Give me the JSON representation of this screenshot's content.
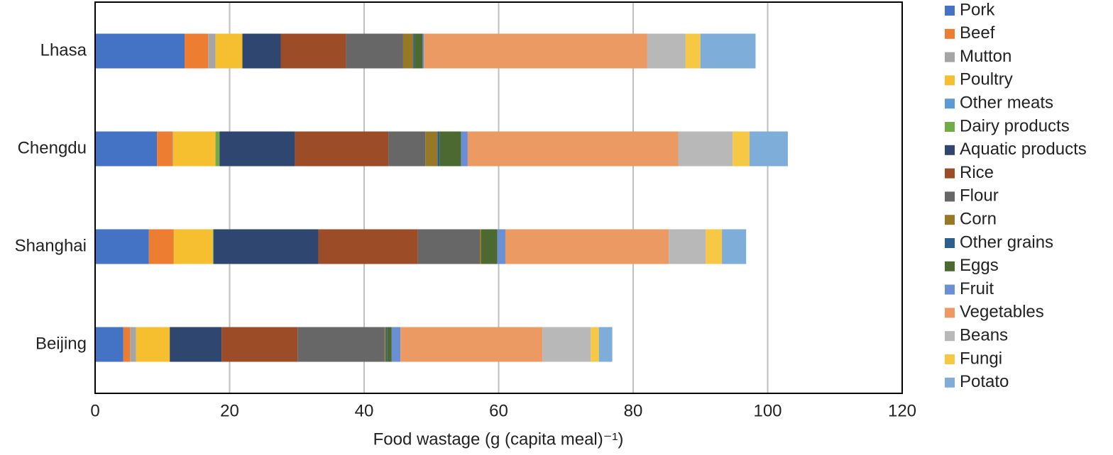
{
  "chart_data": {
    "type": "stacked-barh",
    "x_label": "Food wastage (g (capita meal)⁻¹)",
    "categories": [
      "Lhasa",
      "Chengdu",
      "Shanghai",
      "Beijing"
    ],
    "xlim": [
      0,
      120
    ],
    "xticks": [
      0,
      20,
      40,
      60,
      80,
      100,
      120
    ],
    "grid": true,
    "legend": "right",
    "series": [
      {
        "name": "Pork",
        "color": "#4472c4",
        "values": [
          13.3,
          9.2,
          8.0,
          4.2
        ]
      },
      {
        "name": "Beef",
        "color": "#ed7d31",
        "values": [
          3.5,
          2.3,
          3.7,
          1.0
        ]
      },
      {
        "name": "Mutton",
        "color": "#a5a5a5",
        "values": [
          1.1,
          0.1,
          0,
          0.9
        ]
      },
      {
        "name": "Poultry",
        "color": "#f5bf2f",
        "values": [
          4.0,
          6.3,
          5.8,
          5.0
        ]
      },
      {
        "name": "Other meats",
        "color": "#5b9bd5",
        "values": [
          0,
          0,
          0,
          0
        ]
      },
      {
        "name": "Dairy products",
        "color": "#70ad47",
        "values": [
          0,
          0.6,
          0.1,
          0
        ]
      },
      {
        "name": "Aquatic products",
        "color": "#2e4670",
        "values": [
          5.7,
          11.2,
          15.6,
          7.7
        ]
      },
      {
        "name": "Rice",
        "color": "#9c4c26",
        "values": [
          9.7,
          13.9,
          14.8,
          11.3
        ]
      },
      {
        "name": "Flour",
        "color": "#676767",
        "values": [
          8.5,
          5.5,
          9.2,
          12.9
        ]
      },
      {
        "name": "Corn",
        "color": "#977826",
        "values": [
          1.5,
          1.8,
          0.2,
          0.2
        ]
      },
      {
        "name": "Other grains",
        "color": "#2a5f8e",
        "values": [
          0.2,
          0.3,
          0,
          0.2
        ]
      },
      {
        "name": "Eggs",
        "color": "#4c6932",
        "values": [
          1.2,
          3.2,
          2.4,
          0.7
        ]
      },
      {
        "name": "Fruit",
        "color": "#6a8fd2",
        "values": [
          0.2,
          1.0,
          1.2,
          1.3
        ]
      },
      {
        "name": "Vegetables",
        "color": "#ea9a62",
        "values": [
          33.2,
          31.3,
          24.3,
          21.1
        ]
      },
      {
        "name": "Beans",
        "color": "#b8b8b8",
        "values": [
          5.7,
          8.1,
          5.5,
          7.2
        ]
      },
      {
        "name": "Fungi",
        "color": "#f7c843",
        "values": [
          2.2,
          2.5,
          2.4,
          1.2
        ]
      },
      {
        "name": "Potato",
        "color": "#7eadd9",
        "values": [
          8.2,
          5.7,
          3.6,
          2.0
        ]
      }
    ]
  }
}
